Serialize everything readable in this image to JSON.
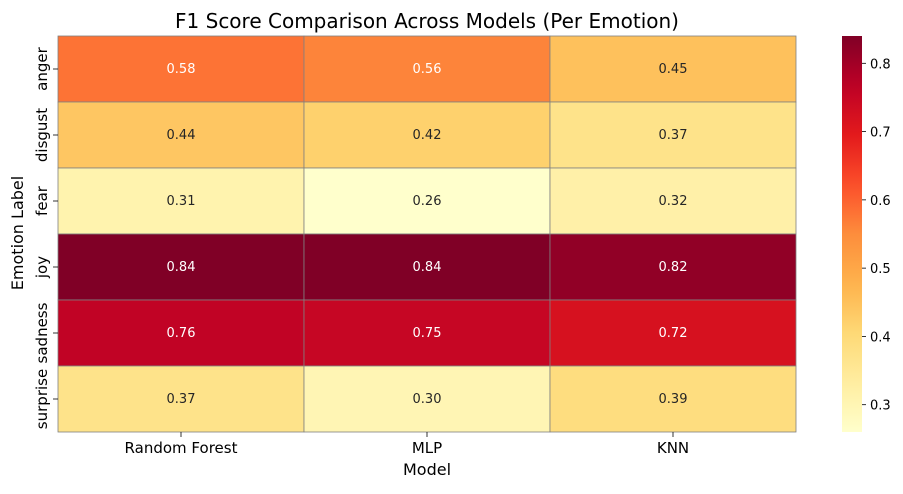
{
  "chart_data": {
    "type": "heatmap",
    "title": "F1 Score Comparison Across Models (Per Emotion)",
    "xlabel": "Model",
    "ylabel": "Emotion Label",
    "x_categories": [
      "Random Forest",
      "MLP",
      "KNN"
    ],
    "y_categories": [
      "anger",
      "disgust",
      "fear",
      "joy",
      "sadness",
      "surprise"
    ],
    "values": [
      [
        0.58,
        0.56,
        0.45
      ],
      [
        0.44,
        0.42,
        0.37
      ],
      [
        0.31,
        0.26,
        0.32
      ],
      [
        0.84,
        0.84,
        0.82
      ],
      [
        0.76,
        0.75,
        0.72
      ],
      [
        0.37,
        0.3,
        0.39
      ]
    ],
    "value_labels": [
      [
        "0.58",
        "0.56",
        "0.45"
      ],
      [
        "0.44",
        "0.42",
        "0.37"
      ],
      [
        "0.31",
        "0.26",
        "0.32"
      ],
      [
        "0.84",
        "0.84",
        "0.82"
      ],
      [
        "0.76",
        "0.75",
        "0.72"
      ],
      [
        "0.37",
        "0.30",
        "0.39"
      ]
    ],
    "colormap": "YlOrRd",
    "vmin": 0.26,
    "vmax": 0.84,
    "colorbar_ticks": [
      0.3,
      0.4,
      0.5,
      0.6,
      0.7,
      0.8
    ],
    "colorbar_tick_labels": [
      "0.3",
      "0.4",
      "0.5",
      "0.6",
      "0.7",
      "0.8"
    ],
    "cell_border_color": "#808080"
  }
}
